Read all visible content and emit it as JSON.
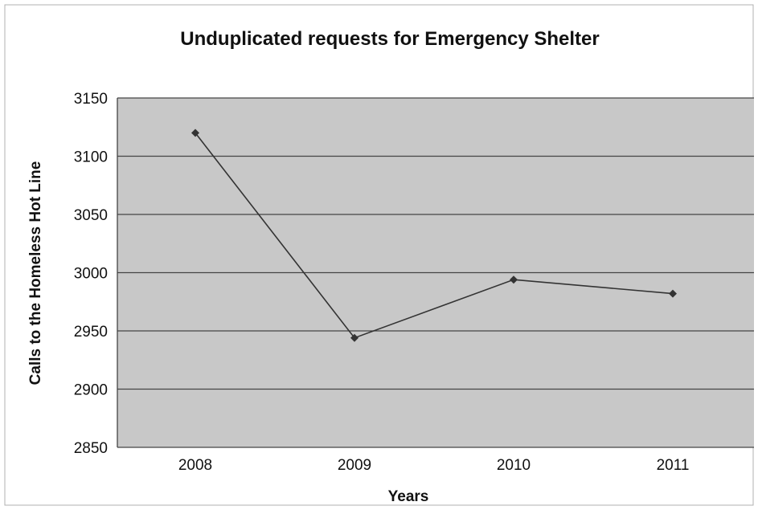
{
  "chart_data": {
    "type": "line",
    "title": "Unduplicated requests for Emergency Shelter",
    "xlabel": "Years",
    "ylabel": "Calls to the Homeless Hot Line",
    "categories": [
      "2008",
      "2009",
      "2010",
      "2011"
    ],
    "series": [
      {
        "values": [
          3120,
          2944,
          2994,
          2982
        ]
      }
    ],
    "ylim": [
      2850,
      3150
    ],
    "yticks": [
      2850,
      2900,
      2950,
      3000,
      3050,
      3100,
      3150
    ],
    "ytick_labels": [
      "2850",
      "2900",
      "2950",
      "3000",
      "3050",
      "3100",
      "3150"
    ],
    "grid": true,
    "legend": "none",
    "colors": {
      "plot_background": "#c8c8c8",
      "line": "#333333",
      "gridline": "#444444",
      "frame": "#888888"
    }
  }
}
